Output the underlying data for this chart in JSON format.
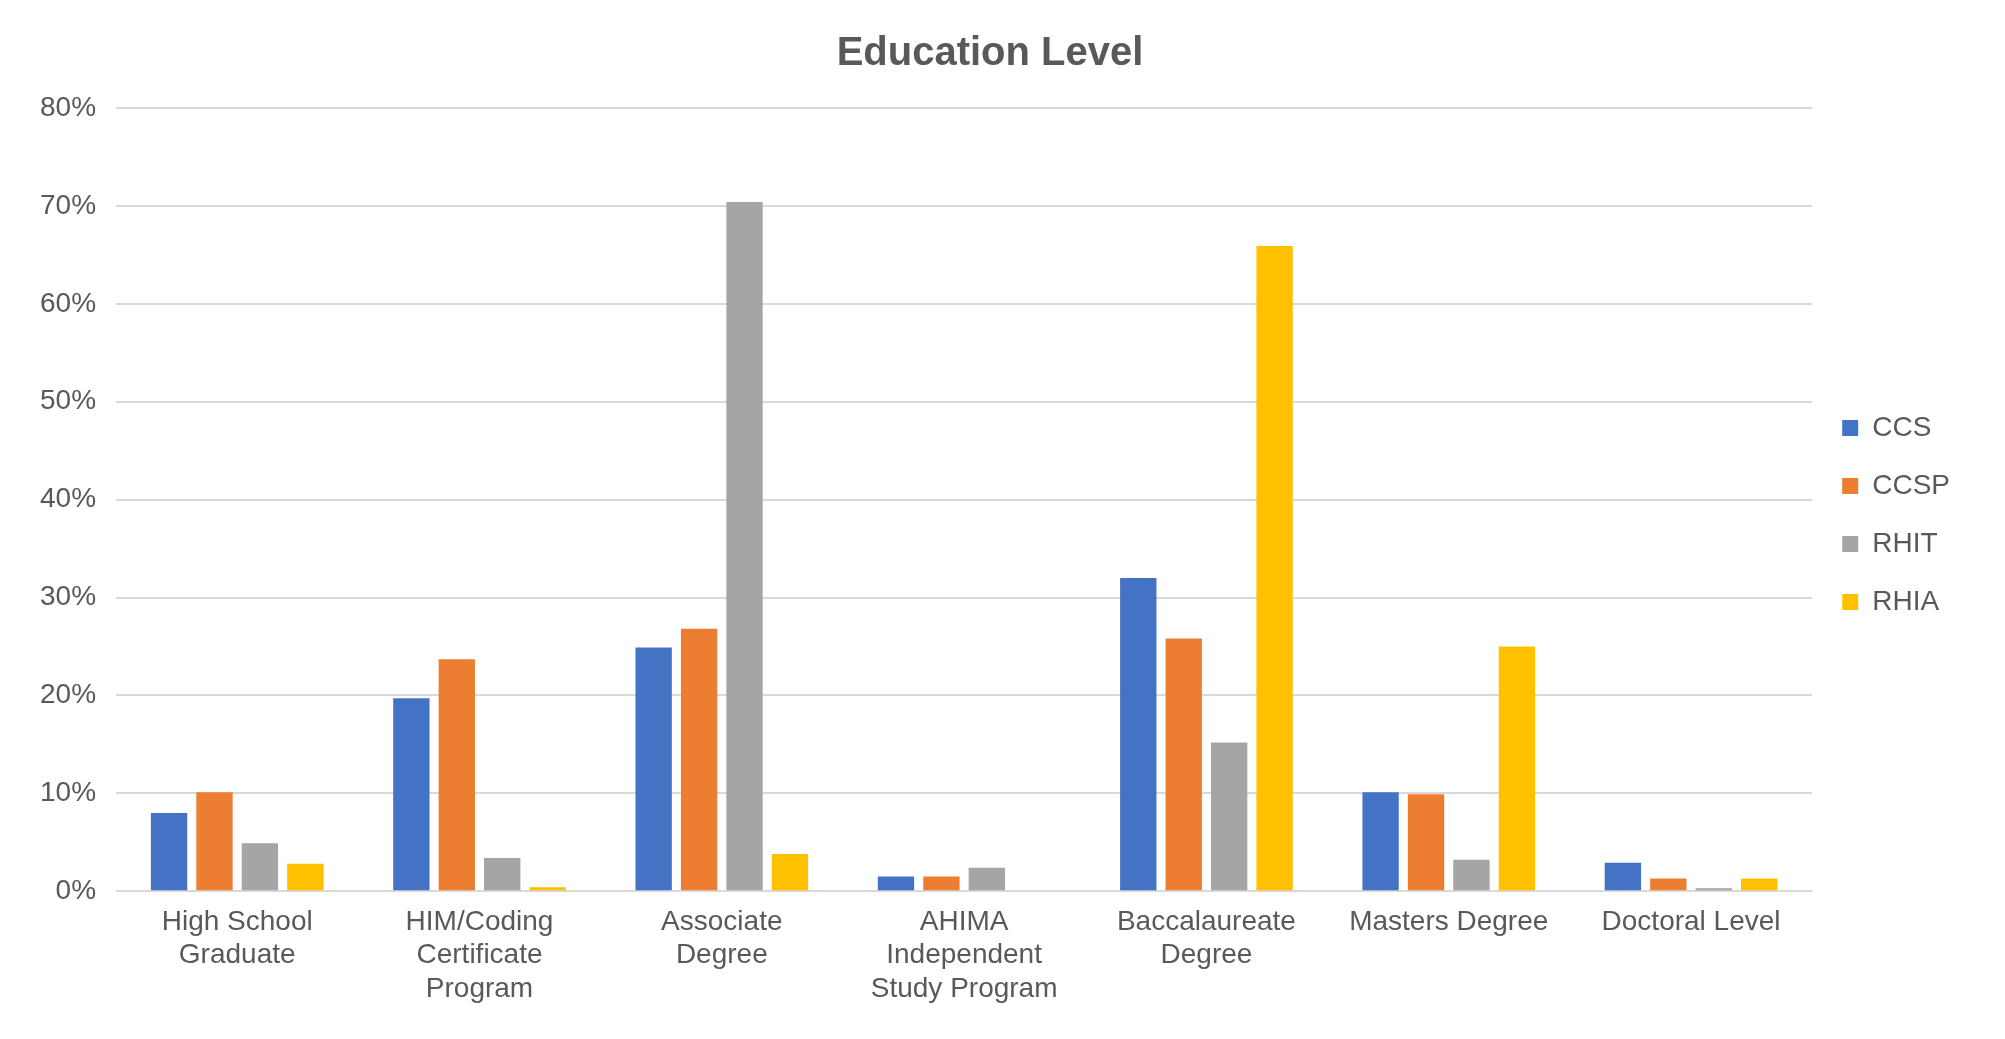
{
  "chart_data": {
    "type": "bar",
    "title": "Education Level",
    "categories": [
      "High School Graduate",
      "HIM/Coding Certificate Program",
      "Associate Degree",
      "AHIMA Independent Study Program",
      "Baccalaureate Degree",
      "Masters Degree",
      "Doctoral Level"
    ],
    "series": [
      {
        "name": "CCS",
        "color": "#4472c4",
        "values": [
          8.0,
          19.7,
          24.9,
          1.5,
          32.0,
          10.1,
          2.9
        ]
      },
      {
        "name": "CCSP",
        "color": "#ed7d31",
        "values": [
          10.1,
          23.7,
          26.8,
          1.5,
          25.8,
          9.9,
          1.3
        ]
      },
      {
        "name": "RHIT",
        "color": "#a5a5a5",
        "values": [
          4.9,
          3.4,
          70.4,
          2.4,
          15.2,
          3.2,
          0.3
        ]
      },
      {
        "name": "RHIA",
        "color": "#ffc000",
        "values": [
          2.8,
          0.4,
          3.8,
          0,
          65.9,
          25.0,
          1.3
        ]
      }
    ],
    "ylim": [
      0,
      80
    ],
    "yticks": [
      {
        "value": 0,
        "label": "0%"
      },
      {
        "value": 10,
        "label": "10%"
      },
      {
        "value": 20,
        "label": "20%"
      },
      {
        "value": 30,
        "label": "30%"
      },
      {
        "value": 40,
        "label": "40%"
      },
      {
        "value": 50,
        "label": "50%"
      },
      {
        "value": 60,
        "label": "60%"
      },
      {
        "value": 70,
        "label": "70%"
      },
      {
        "value": 80,
        "label": "80%"
      }
    ],
    "grid": "y",
    "legend": "right"
  }
}
